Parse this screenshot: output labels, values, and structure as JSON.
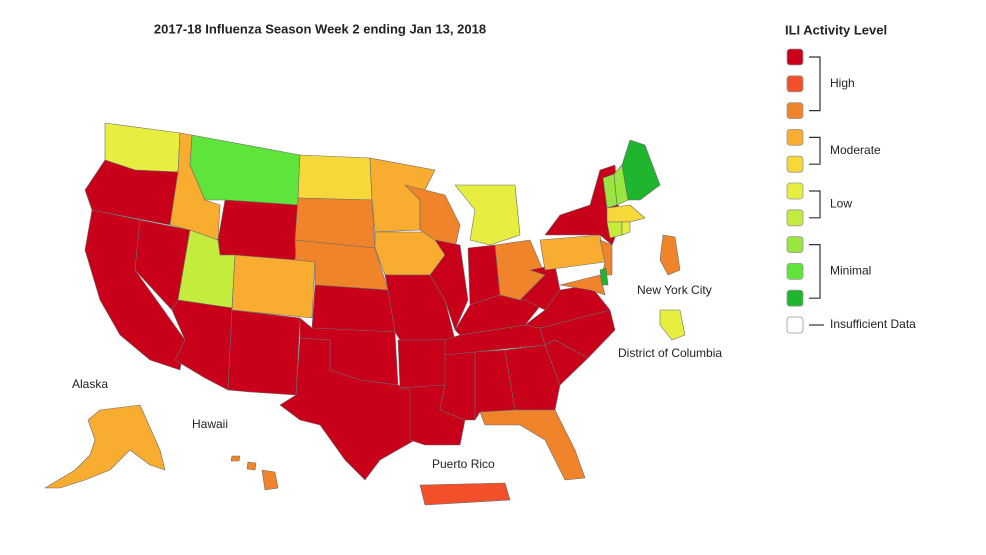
{
  "title": "2017-18 Influenza Season Week 2 ending Jan 13, 2018",
  "legend": {
    "title": "ILI Activity Level",
    "levels": [
      {
        "label": "High",
        "colors": [
          "#c8001a",
          "#f1502a",
          "#f0842a"
        ]
      },
      {
        "label": "Moderate",
        "colors": [
          "#f8ad31",
          "#f6d83a"
        ]
      },
      {
        "label": "Low",
        "colors": [
          "#e6ef40",
          "#c3ec3c"
        ]
      },
      {
        "label": "Minimal",
        "colors": [
          "#98e63f",
          "#5ee43b",
          "#20b52e"
        ]
      },
      {
        "label": "Insufficient Data",
        "colors": [
          "#ffffff"
        ]
      }
    ]
  },
  "region_labels": [
    "Alaska",
    "Hawaii",
    "Puerto Rico",
    "New York City",
    "District of Columbia"
  ]
}
